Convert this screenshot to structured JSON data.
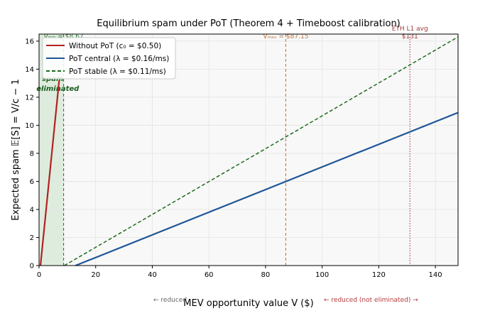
{
  "chart_data": {
    "type": "line",
    "title": "Equilibrium spam under PoT  (Theorem 4 + Timeboost calibration)",
    "xlabel": "MEV opportunity value  V  ($)",
    "ylabel": "Expected spam  𝔼[S] = V/c − 1",
    "xlim": [
      0,
      148
    ],
    "ylim": [
      0,
      16.5
    ],
    "x_ticks": [
      0,
      20,
      40,
      60,
      80,
      100,
      120,
      140
    ],
    "y_ticks": [
      0,
      2,
      4,
      6,
      8,
      10,
      12,
      14,
      16
    ],
    "grid": true,
    "legend_position": "top-left",
    "series": [
      {
        "name": "Without PoT  (c₀ = $0.50)",
        "color": "#b22222",
        "dash": "solid",
        "x": [
          0.5,
          7.1
        ],
        "y": [
          0,
          13.2
        ]
      },
      {
        "name": "PoT central  (λ = $0.16/ms)",
        "color": "#1f5796",
        "dash": "solid",
        "x": [
          12.9,
          148
        ],
        "y": [
          0,
          10.9
        ]
      },
      {
        "name": "PoT stable   (λ = $0.11/ms)",
        "color": "#1e6b1e",
        "dash": "dashed",
        "x": [
          8.9,
          148
        ],
        "y": [
          0,
          16.3
        ]
      }
    ],
    "vlines": [
      {
        "x": 8.67,
        "label": "Vₘᵢₙ = $8.67",
        "color": "#2e7d32",
        "style": "dashed"
      },
      {
        "x": 87.15,
        "label": "Vₘₐₓ = $87.15",
        "color": "#c0763e",
        "style": "dashed"
      },
      {
        "x": 131,
        "label_line1": "ETH L1 avg",
        "label_line2": "$131",
        "color": "#a33a3a",
        "style": "dotted"
      }
    ],
    "shaded_region": {
      "x_from": 0,
      "x_to": 8.67,
      "label_line1": "spam",
      "label_line2": "eliminated",
      "color": "#d7e8d7"
    },
    "footer_notes": [
      {
        "text": "← reduced",
        "color": "#666666"
      },
      {
        "text": "← reduced (not eliminated) →",
        "color": "#b23a3a"
      }
    ]
  }
}
